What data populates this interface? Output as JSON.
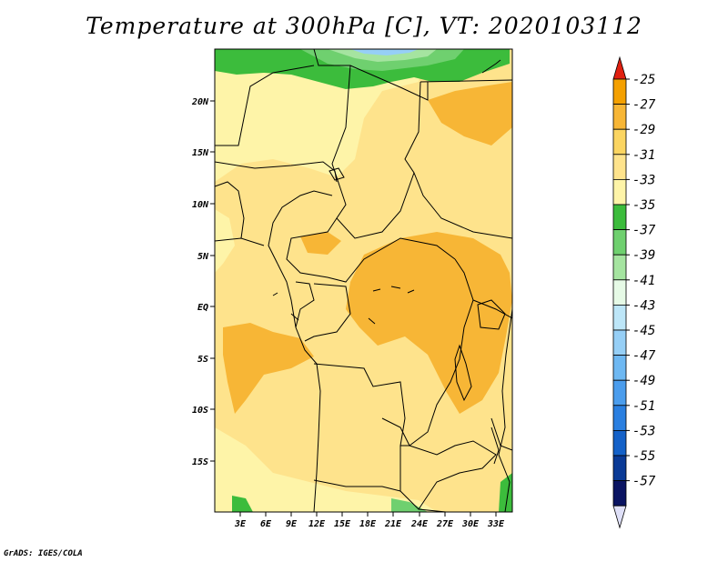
{
  "title": "Temperature at 300hPa [C], VT: 2020103112",
  "credit": "GrADS: IGES/COLA",
  "map": {
    "lat_labels": [
      "20N",
      "15N",
      "10N",
      "5N",
      "EQ",
      "5S",
      "10S",
      "15S"
    ],
    "lon_labels": [
      "3E",
      "6E",
      "9E",
      "12E",
      "15E",
      "18E",
      "21E",
      "24E",
      "27E",
      "30E",
      "33E"
    ]
  },
  "colorbar": {
    "labels": [
      "-25",
      "-27",
      "-29",
      "-31",
      "-33",
      "-35",
      "-37",
      "-39",
      "-41",
      "-43",
      "-45",
      "-47",
      "-49",
      "-51",
      "-53",
      "-55",
      "-57"
    ],
    "colors": [
      "#f06010",
      "#f4a000",
      "#f7b636",
      "#fbd561",
      "#fee38c",
      "#fef4a8",
      "#3cbc3c",
      "#6fd06f",
      "#a5e4a0",
      "#e6fae6",
      "#bde6f8",
      "#96cff6",
      "#6eb8f2",
      "#4b9ded",
      "#2a7fe0",
      "#1461c8",
      "#0a3a96",
      "#0a1462"
    ],
    "top_arrow_color": "#e02010",
    "bottom_arrow_color": "#dfe0f8"
  },
  "colors": {
    "base": "#fee38c",
    "cool": "#fef4a8",
    "warm": "#fbd561",
    "warmer": "#f7b636",
    "green": "#3cbc3c",
    "light_green": "#6fd06f",
    "blue": "#96cff6"
  }
}
